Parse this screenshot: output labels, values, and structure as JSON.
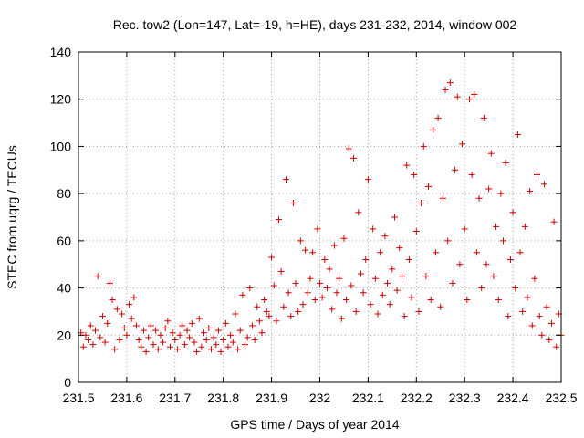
{
  "chart_data": {
    "type": "scatter",
    "title": "Rec. tow2 (Lon=147, Lat=-19, h=HE), days 231-232, 2014, window 002",
    "xlabel": "GPS time / Days of year 2014",
    "ylabel": "STEC from uqrg / TECUs",
    "xlim": [
      231.5,
      232.5
    ],
    "ylim": [
      0,
      140
    ],
    "xticks": [
      231.5,
      231.6,
      231.7,
      231.8,
      231.9,
      232.0,
      232.1,
      232.2,
      232.3,
      232.4,
      232.5
    ],
    "xtick_labels": [
      "231.5",
      "231.6",
      "231.7",
      "231.8",
      "231.9",
      "232",
      "232.1",
      "232.2",
      "232.3",
      "232.4",
      "232.5"
    ],
    "yticks": [
      0,
      20,
      40,
      60,
      80,
      100,
      120,
      140
    ],
    "ytick_labels": [
      "0",
      "20",
      "40",
      "60",
      "80",
      "100",
      "120",
      "140"
    ],
    "grid": true,
    "marker": "+",
    "color": "#cc0000",
    "series": [
      {
        "name": "STEC",
        "points": [
          [
            231.505,
            21
          ],
          [
            231.51,
            15
          ],
          [
            231.515,
            20
          ],
          [
            231.52,
            18
          ],
          [
            231.525,
            24
          ],
          [
            231.53,
            16
          ],
          [
            231.535,
            22
          ],
          [
            231.54,
            45
          ],
          [
            231.545,
            19
          ],
          [
            231.55,
            28
          ],
          [
            231.555,
            17
          ],
          [
            231.56,
            25
          ],
          [
            231.565,
            42
          ],
          [
            231.57,
            35
          ],
          [
            231.575,
            14
          ],
          [
            231.58,
            31
          ],
          [
            231.585,
            18
          ],
          [
            231.59,
            29
          ],
          [
            231.595,
            23
          ],
          [
            231.6,
            20
          ],
          [
            231.605,
            33
          ],
          [
            231.61,
            27
          ],
          [
            231.615,
            36
          ],
          [
            231.62,
            24
          ],
          [
            231.625,
            18
          ],
          [
            231.63,
            15
          ],
          [
            231.635,
            22
          ],
          [
            231.64,
            13
          ],
          [
            231.645,
            19
          ],
          [
            231.65,
            24
          ],
          [
            231.655,
            16
          ],
          [
            231.66,
            22
          ],
          [
            231.665,
            14
          ],
          [
            231.67,
            20
          ],
          [
            231.675,
            17
          ],
          [
            231.68,
            23
          ],
          [
            231.685,
            26
          ],
          [
            231.69,
            15
          ],
          [
            231.695,
            21
          ],
          [
            231.7,
            18
          ],
          [
            231.705,
            14
          ],
          [
            231.71,
            20
          ],
          [
            231.715,
            24
          ],
          [
            231.72,
            16
          ],
          [
            231.725,
            22
          ],
          [
            231.73,
            19
          ],
          [
            231.735,
            25
          ],
          [
            231.74,
            17
          ],
          [
            231.745,
            13
          ],
          [
            231.75,
            27
          ],
          [
            231.755,
            15
          ],
          [
            231.76,
            21
          ],
          [
            231.765,
            18
          ],
          [
            231.77,
            23
          ],
          [
            231.775,
            14
          ],
          [
            231.78,
            19
          ],
          [
            231.785,
            16
          ],
          [
            231.79,
            22
          ],
          [
            231.795,
            13
          ],
          [
            231.8,
            18
          ],
          [
            231.805,
            25
          ],
          [
            231.81,
            15
          ],
          [
            231.815,
            20
          ],
          [
            231.82,
            17
          ],
          [
            231.825,
            29
          ],
          [
            231.83,
            14
          ],
          [
            231.835,
            22
          ],
          [
            231.84,
            37
          ],
          [
            231.845,
            16
          ],
          [
            231.85,
            19
          ],
          [
            231.855,
            40
          ],
          [
            231.86,
            24
          ],
          [
            231.865,
            18
          ],
          [
            231.87,
            32
          ],
          [
            231.875,
            26
          ],
          [
            231.88,
            21
          ],
          [
            231.885,
            35
          ],
          [
            231.89,
            30
          ],
          [
            231.895,
            28
          ],
          [
            231.9,
            53
          ],
          [
            231.905,
            41
          ],
          [
            231.91,
            26
          ],
          [
            231.915,
            69
          ],
          [
            231.92,
            47
          ],
          [
            231.925,
            32
          ],
          [
            231.93,
            86
          ],
          [
            231.935,
            38
          ],
          [
            231.94,
            28
          ],
          [
            231.945,
            76
          ],
          [
            231.95,
            42
          ],
          [
            231.955,
            30
          ],
          [
            231.96,
            60
          ],
          [
            231.965,
            33
          ],
          [
            231.97,
            56
          ],
          [
            231.975,
            38
          ],
          [
            231.98,
            44
          ],
          [
            231.985,
            55
          ],
          [
            231.99,
            35
          ],
          [
            231.995,
            65
          ],
          [
            232.0,
            42
          ],
          [
            232.005,
            36
          ],
          [
            232.01,
            52
          ],
          [
            232.015,
            40
          ],
          [
            232.02,
            48
          ],
          [
            232.025,
            31
          ],
          [
            232.03,
            58
          ],
          [
            232.035,
            38
          ],
          [
            232.04,
            44
          ],
          [
            232.045,
            27
          ],
          [
            232.05,
            61
          ],
          [
            232.055,
            35
          ],
          [
            232.06,
            99
          ],
          [
            232.065,
            41
          ],
          [
            232.07,
            95
          ],
          [
            232.075,
            30
          ],
          [
            232.08,
            72
          ],
          [
            232.085,
            46
          ],
          [
            232.09,
            38
          ],
          [
            232.095,
            52
          ],
          [
            232.1,
            86
          ],
          [
            232.105,
            33
          ],
          [
            232.11,
            65
          ],
          [
            232.115,
            44
          ],
          [
            232.12,
            29
          ],
          [
            232.125,
            55
          ],
          [
            232.13,
            37
          ],
          [
            232.135,
            62
          ],
          [
            232.14,
            42
          ],
          [
            232.145,
            33
          ],
          [
            232.15,
            48
          ],
          [
            232.155,
            70
          ],
          [
            232.16,
            39
          ],
          [
            232.165,
            57
          ],
          [
            232.17,
            45
          ],
          [
            232.175,
            28
          ],
          [
            232.18,
            92
          ],
          [
            232.185,
            52
          ],
          [
            232.19,
            36
          ],
          [
            232.195,
            88
          ],
          [
            232.2,
            64
          ],
          [
            232.205,
            30
          ],
          [
            232.21,
            76
          ],
          [
            232.215,
            100
          ],
          [
            232.22,
            45
          ],
          [
            232.225,
            83
          ],
          [
            232.23,
            35
          ],
          [
            232.235,
            107
          ],
          [
            232.24,
            55
          ],
          [
            232.245,
            112
          ],
          [
            232.25,
            32
          ],
          [
            232.255,
            78
          ],
          [
            232.26,
            124
          ],
          [
            232.265,
            60
          ],
          [
            232.27,
            127
          ],
          [
            232.275,
            42
          ],
          [
            232.28,
            90
          ],
          [
            232.285,
            121
          ],
          [
            232.29,
            50
          ],
          [
            232.295,
            101
          ],
          [
            232.3,
            65
          ],
          [
            232.305,
            35
          ],
          [
            232.31,
            120
          ],
          [
            232.315,
            88
          ],
          [
            232.32,
            122
          ],
          [
            232.325,
            55
          ],
          [
            232.33,
            78
          ],
          [
            232.335,
            40
          ],
          [
            232.34,
            112
          ],
          [
            232.345,
            50
          ],
          [
            232.35,
            82
          ],
          [
            232.355,
            97
          ],
          [
            232.36,
            45
          ],
          [
            232.365,
            66
          ],
          [
            232.37,
            35
          ],
          [
            232.375,
            80
          ],
          [
            232.38,
            60
          ],
          [
            232.385,
            93
          ],
          [
            232.39,
            28
          ],
          [
            232.395,
            52
          ],
          [
            232.4,
            72
          ],
          [
            232.405,
            40
          ],
          [
            232.41,
            105
          ],
          [
            232.415,
            55
          ],
          [
            232.42,
            30
          ],
          [
            232.425,
            66
          ],
          [
            232.43,
            36
          ],
          [
            232.435,
            81
          ],
          [
            232.44,
            24
          ],
          [
            232.445,
            44
          ],
          [
            232.45,
            88
          ],
          [
            232.455,
            28
          ],
          [
            232.46,
            20
          ],
          [
            232.465,
            84
          ],
          [
            232.47,
            32
          ],
          [
            232.475,
            18
          ],
          [
            232.48,
            25
          ],
          [
            232.485,
            68
          ],
          [
            232.49,
            15
          ],
          [
            232.495,
            29
          ],
          [
            232.5,
            20
          ]
        ]
      }
    ]
  }
}
